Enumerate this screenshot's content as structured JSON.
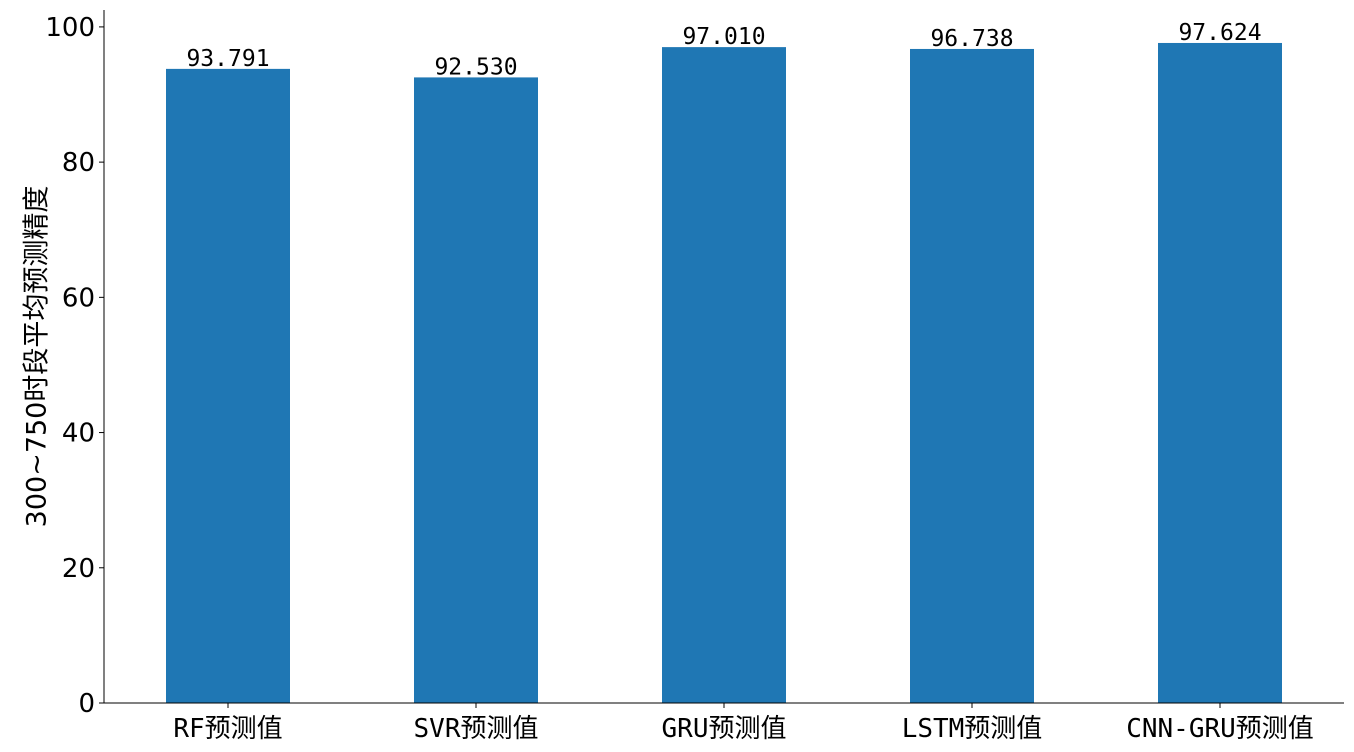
{
  "chart_data": {
    "type": "bar",
    "title": "",
    "xlabel": "",
    "ylabel": "300~750时段平均预测精度",
    "categories": [
      "RF预测值",
      "SVR预测值",
      "GRU预测值",
      "LSTM预测值",
      "CNN-GRU预测值"
    ],
    "values": [
      93.791,
      92.53,
      97.01,
      96.738,
      97.624
    ],
    "value_labels": [
      "93.791",
      "92.530",
      "97.010",
      "96.738",
      "97.624"
    ],
    "ylim": [
      0,
      102.5
    ],
    "yticks": [
      0,
      20,
      40,
      60,
      80,
      100
    ],
    "ytick_labels": [
      "0",
      "20",
      "40",
      "60",
      "80",
      "100"
    ],
    "bar_color": "#1f77b4",
    "grid": false,
    "legend": "none",
    "spines": [
      "left",
      "bottom"
    ]
  }
}
